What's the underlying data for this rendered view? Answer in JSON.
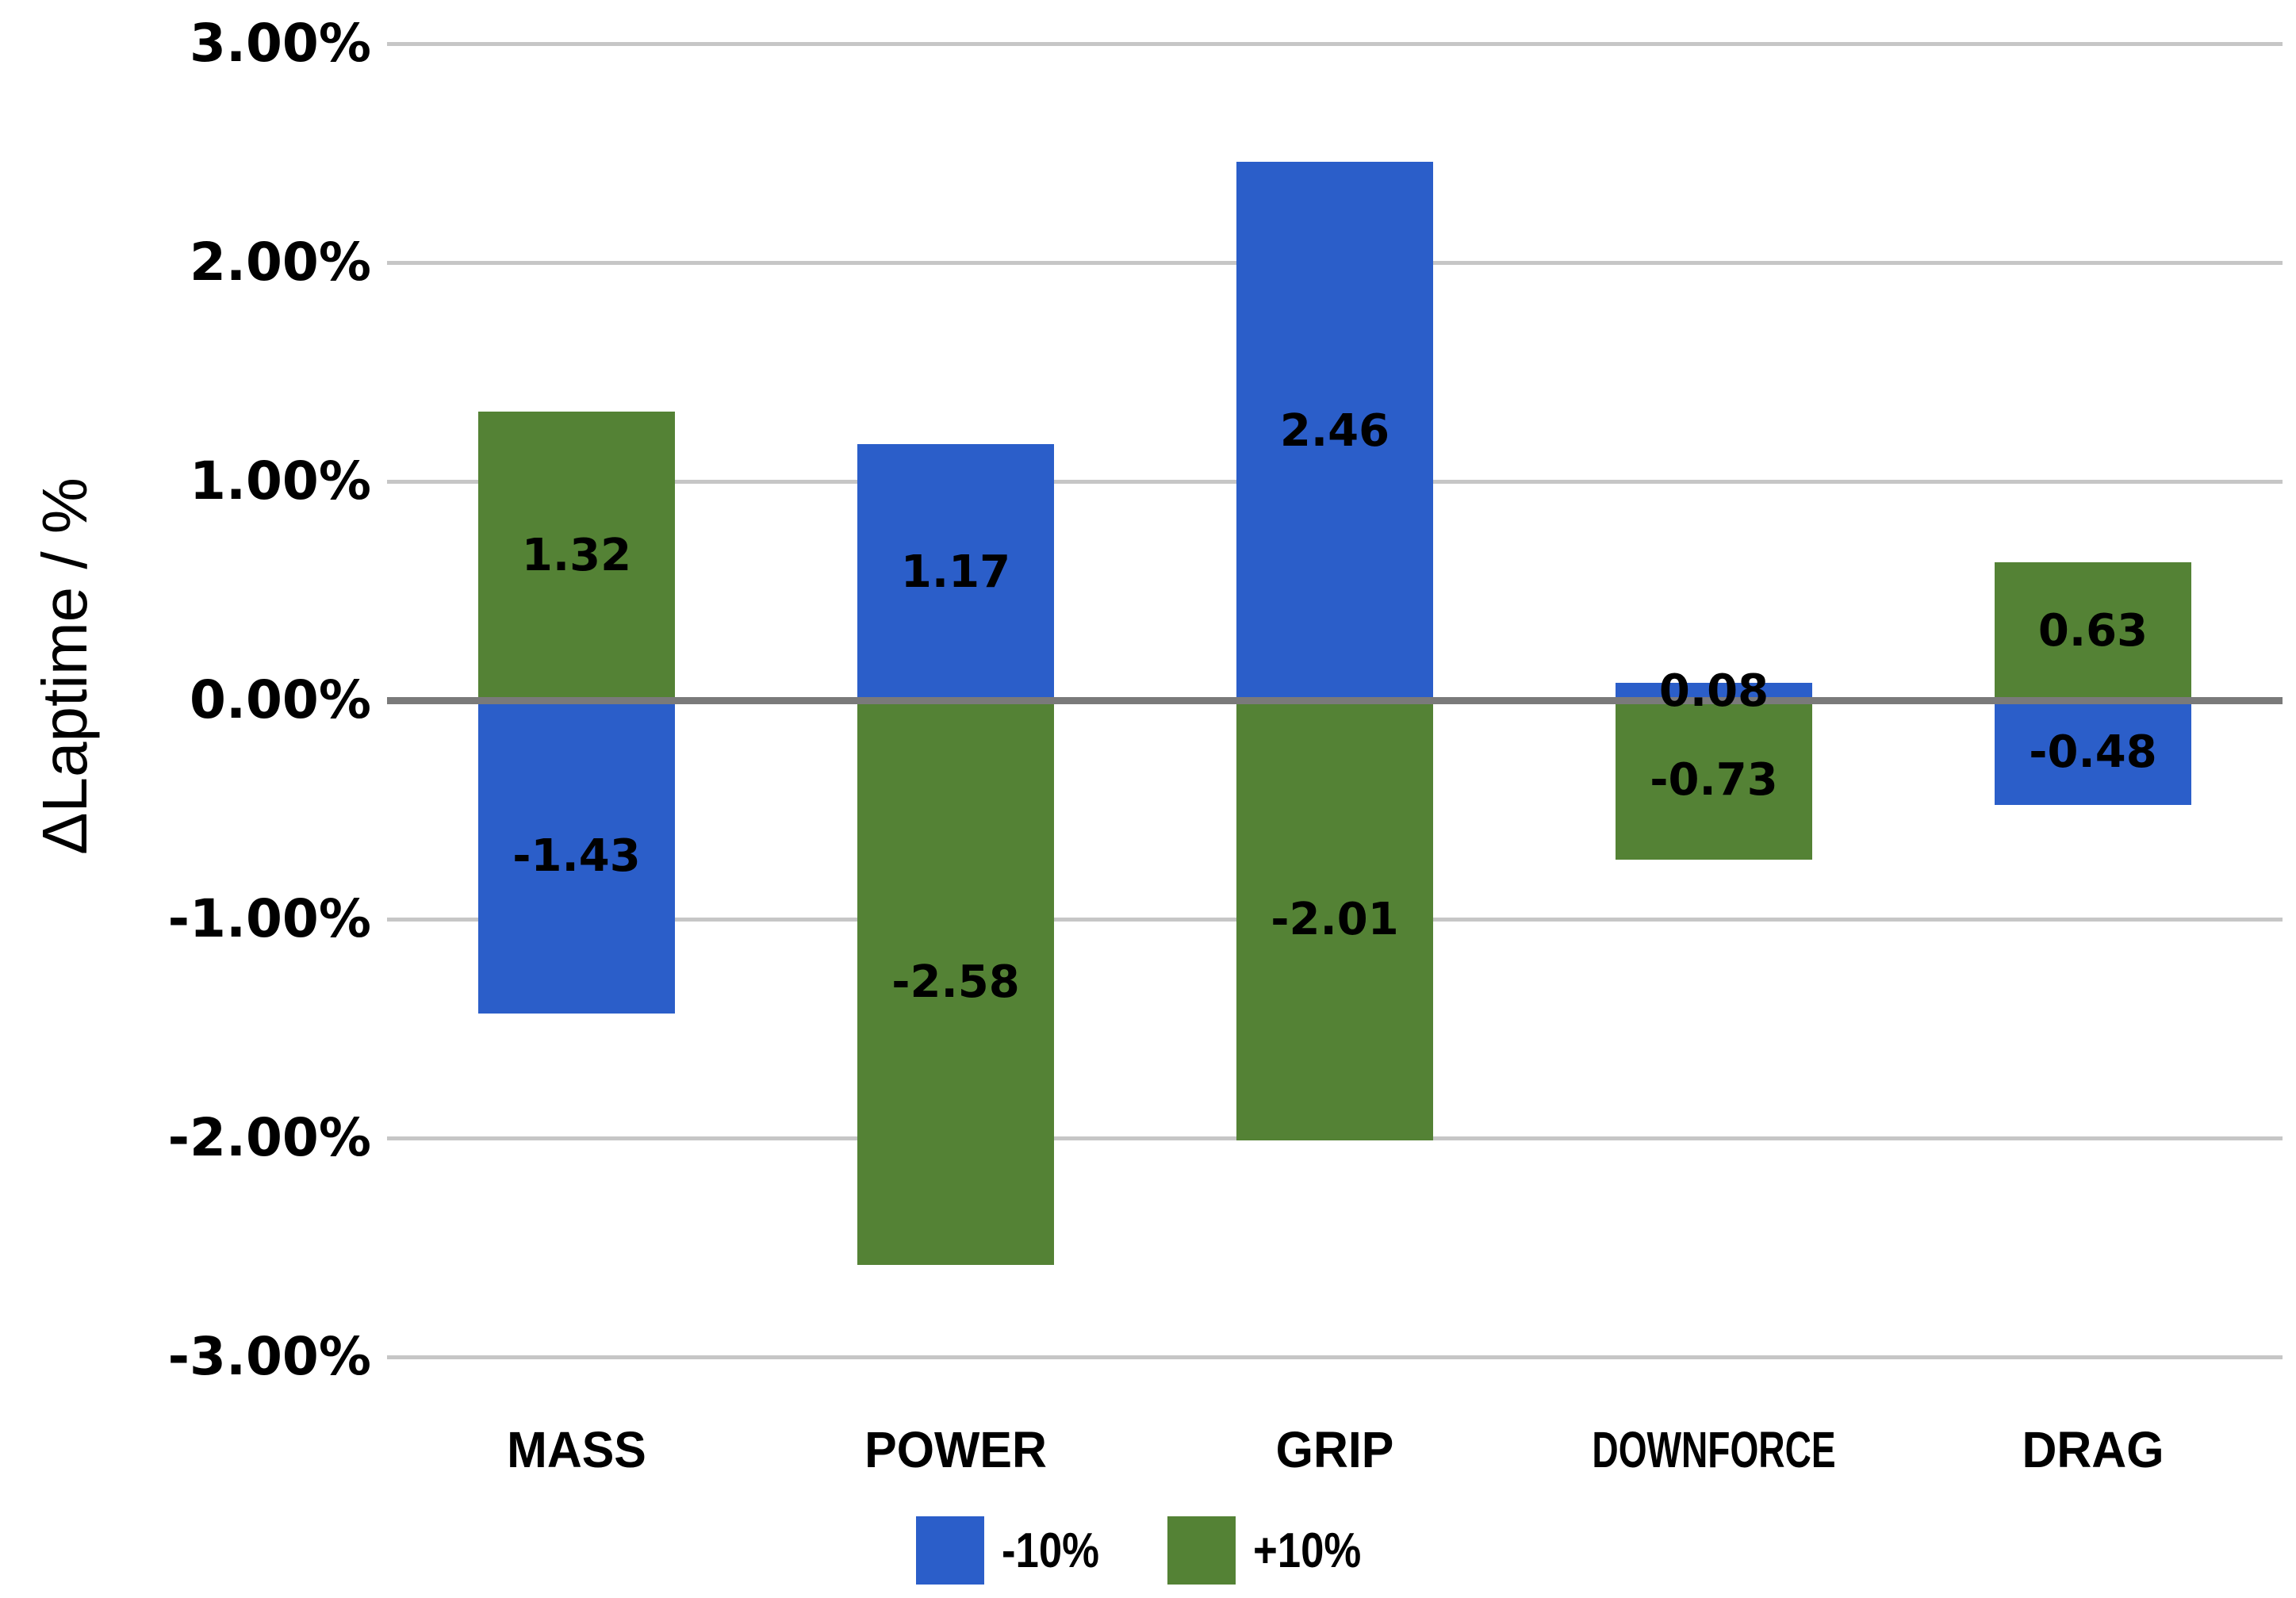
{
  "chart_data": {
    "type": "bar",
    "title": "",
    "xlabel": "",
    "ylabel": "ΔLaptime / %",
    "categories": [
      "MASS",
      "POWER",
      "GRIP",
      "DOWNFORCE",
      "DRAG"
    ],
    "series": [
      {
        "name": "-10%",
        "color": "#2b5ec9",
        "values": [
          -1.43,
          1.17,
          2.46,
          0.08,
          -0.48
        ],
        "value_labels": [
          "-1.43",
          "1.17",
          "2.46",
          "0.08",
          "-0.48"
        ]
      },
      {
        "name": "+10%",
        "color": "#548235",
        "values": [
          1.32,
          -2.58,
          -2.01,
          -0.73,
          0.63
        ],
        "value_labels": [
          "1.32",
          "-2.58",
          "-2.01",
          "-0.73",
          "0.63"
        ]
      }
    ],
    "ylim": [
      -3,
      3
    ],
    "ytick_labels": [
      "3.00%",
      "2.00%",
      "1.00%",
      "0.00%",
      "-1.00%",
      "-2.00%",
      "-3.00%"
    ],
    "ytick_values": [
      3,
      2,
      1,
      0,
      -1,
      -2,
      -3
    ],
    "grid": true,
    "gridline_color": "#c6c6c6",
    "zero_line_color": "#7a7a7a",
    "legend_position": "bottom",
    "background_color": "#ffffff",
    "label_color": "#000000"
  }
}
